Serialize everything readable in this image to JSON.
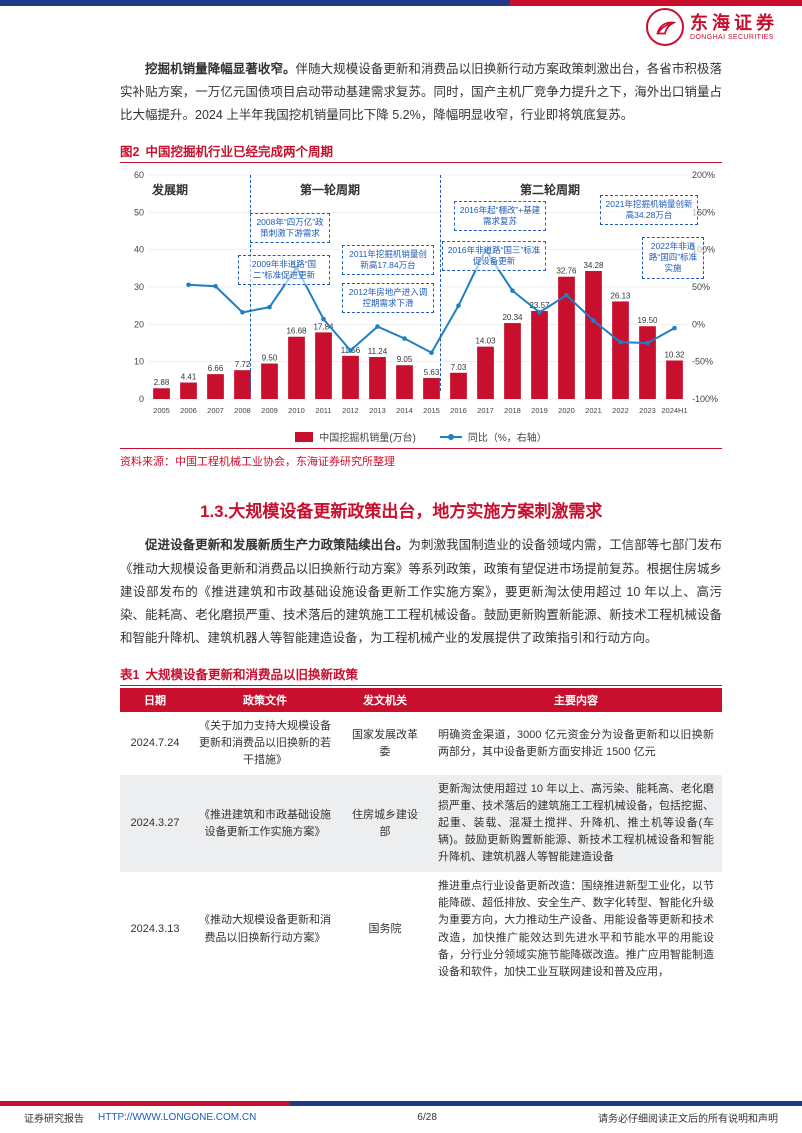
{
  "brand": {
    "cn": "东海证券",
    "en": "DONGHAI SECURITIES"
  },
  "para1_bold": "挖掘机销量降幅显著收窄。",
  "para1_rest": "伴随大规模设备更新和消费品以旧换新行动方案政策刺激出台，各省市积极落实补贴方案，一万亿元国债项目启动带动基建需求复苏。同时，国产主机厂竞争力提升之下，海外出口销量占比大幅提升。2024 上半年我国挖机销量同比下降 5.2%，降幅明显收窄，行业即将筑底复苏。",
  "fig": {
    "label": "图2",
    "title": "中国挖掘机行业已经完成两个周期",
    "periods": {
      "p1": "发展期",
      "p2": "第一轮周期",
      "p3": "第二轮周期"
    },
    "callouts": {
      "c1": "2008年“四万亿”政策刺激下游需求",
      "c2": "2009年非道路“国二”标准促进更新",
      "c3": "2011年挖掘机销量创新高17.84万台",
      "c4": "2012年房地产进入调控期需求下滑",
      "c5": "2016年起“棚改”+基建需求复苏",
      "c6": "2016年非道路“国三”标准促设备更新",
      "c7": "2021年挖掘机销量创新高34.28万台",
      "c8": "2022年非道路“国四”标准实施"
    },
    "legend": {
      "a": "中国挖掘机销量(万台)",
      "b": "同比（%，右轴）"
    },
    "source": "资料来源：中国工程机械工业协会，东海证券研究所整理",
    "chart": {
      "type": "bar+line",
      "categories": [
        "2005",
        "2006",
        "2007",
        "2008",
        "2009",
        "2010",
        "2011",
        "2012",
        "2013",
        "2014",
        "2015",
        "2016",
        "2017",
        "2018",
        "2019",
        "2020",
        "2021",
        "2022",
        "2023",
        "2024H1"
      ],
      "bars": [
        2.88,
        4.41,
        6.66,
        7.72,
        9.5,
        16.68,
        17.84,
        11.56,
        11.24,
        9.05,
        5.63,
        7.03,
        14.03,
        20.34,
        23.57,
        32.76,
        34.28,
        26.13,
        19.5,
        10.32
      ],
      "line_yoy_pct": [
        null,
        53,
        51,
        16,
        23,
        76,
        7,
        -35,
        -3,
        -19,
        -38,
        25,
        100,
        45,
        16,
        39,
        5,
        -24,
        -25,
        -5
      ],
      "y_left": {
        "min": 0,
        "max": 60,
        "step": 10,
        "label_size": 9
      },
      "y_right": {
        "min": -100,
        "max": 200,
        "step": 50,
        "label_size": 9
      },
      "colors": {
        "bar": "#c8102e",
        "line": "#1e7fc4",
        "grid": "#e5e5e5",
        "divider": "#1e5bb8",
        "callout_border": "#1e5bb8"
      },
      "dividers_after_index": [
        3,
        10
      ],
      "bar_width": 0.62,
      "title_fontsize": 12.5,
      "label_fontsize": 8
    }
  },
  "section": {
    "num": "1.3.",
    "title": "大规模设备更新政策出台，地方实施方案刺激需求"
  },
  "para2_bold": "促进设备更新和发展新质生产力政策陆续出台。",
  "para2_rest": "为刺激我国制造业的设备领域内需，工信部等七部门发布《推动大规模设备更新和消费品以旧换新行动方案》等系列政策，政策有望促进市场提前复苏。根据住房城乡建设部发布的《推进建筑和市政基础设施设备更新工作实施方案》，要更新淘汰使用超过 10 年以上、高污染、能耗高、老化磨损严重、技术落后的建筑施工工程机械设备。鼓励更新购置新能源、新技术工程机械设备和智能升降机、建筑机器人等智能建造设备，为工程机械产业的发展提供了政策指引和行动方向。",
  "table": {
    "label": "表1",
    "title": "大规模设备更新和消费品以旧换新政策",
    "columns": [
      "日期",
      "政策文件",
      "发文机关",
      "主要内容"
    ],
    "rows": [
      {
        "date": "2024.7.24",
        "doc": "《关于加力支持大规模设备更新和消费品以旧换新的若干措施》",
        "org": "国家发展改革委",
        "content": "明确资金渠道，3000 亿元资金分为设备更新和以旧换新两部分，其中设备更新方面安排近 1500 亿元"
      },
      {
        "date": "2024.3.27",
        "doc": "《推进建筑和市政基础设施设备更新工作实施方案》",
        "org": "住房城乡建设部",
        "content": "更新淘汰使用超过 10 年以上、高污染、能耗高、老化磨损严重、技术落后的建筑施工工程机械设备，包括挖掘、起重、装载、混凝土搅拌、升降机、推土机等设备(车辆)。鼓励更新购置新能源、新技术工程机械设备和智能升降机、建筑机器人等智能建造设备"
      },
      {
        "date": "2024.3.13",
        "doc": "《推动大规模设备更新和消费品以旧换新行动方案》",
        "org": "国务院",
        "content": "推进重点行业设备更新改造：围绕推进新型工业化，以节能降碳、超低排放、安全生产、数字化转型、智能化升级为重要方向，大力推动生产设备、用能设备等更新和技术改造，加快推广能效达到先进水平和节能水平的用能设备，分行业分领域实施节能降碳改造。推广应用智能制造设备和软件，加快工业互联网建设和普及应用，"
      }
    ]
  },
  "footer": {
    "left": "证券研究报告",
    "url": "HTTP://WWW.LONGONE.COM.CN",
    "page": "6/28",
    "right": "请务必仔细阅读正文后的所有说明和声明"
  }
}
